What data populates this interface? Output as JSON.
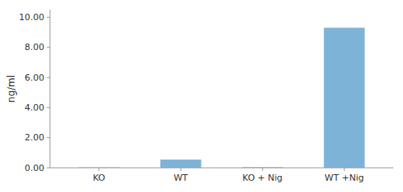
{
  "chart_data": {
    "type": "bar",
    "categories": [
      "KO",
      "WT",
      "KO + Nig",
      "WT +Nig"
    ],
    "values": [
      0.03,
      0.55,
      0.04,
      9.3
    ],
    "color": "#7EB3D8",
    "ylabel": "ng/ml",
    "ylim": [
      0,
      10.5
    ],
    "yticks": [
      {
        "value": 0.0,
        "label": "0.00"
      },
      {
        "value": 2.0,
        "label": "2.00"
      },
      {
        "value": 4.0,
        "label": "4.00"
      },
      {
        "value": 6.0,
        "label": "6.00"
      },
      {
        "value": 8.0,
        "label": "8.00"
      },
      {
        "value": 10.0,
        "label": "10.00"
      }
    ],
    "grid": false
  }
}
